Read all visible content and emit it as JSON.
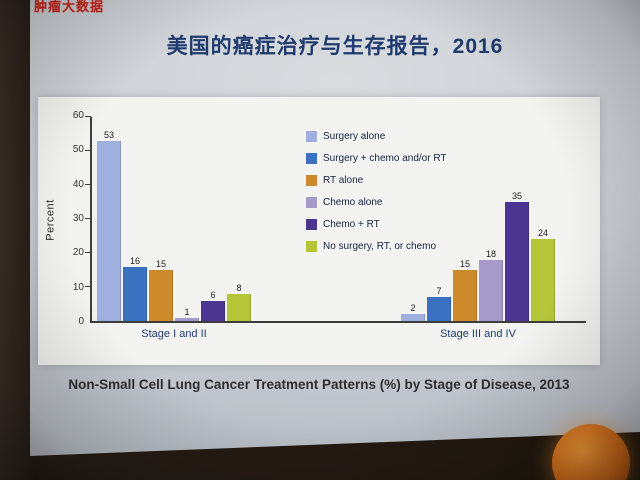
{
  "slide": {
    "watermark": "肿瘤大数据",
    "title": "美国的癌症治疗与生存报告，2016",
    "caption": "Non-Small Cell Lung Cancer Treatment Patterns (%) by Stage of Disease, 2013"
  },
  "chart_data": {
    "type": "bar",
    "title": "Non-Small Cell Lung Cancer Treatment Patterns (%) by Stage of Disease, 2013",
    "xlabel": "",
    "ylabel": "Percent",
    "ylim": [
      0,
      60
    ],
    "yticks": [
      0,
      10,
      20,
      30,
      40,
      50,
      60
    ],
    "grid": false,
    "legend_position": "inside upper center-right",
    "categories": [
      "Stage I and II",
      "Stage III and IV"
    ],
    "series": [
      {
        "name": "Surgery alone",
        "color": "#9fafde",
        "values": [
          53,
          2
        ]
      },
      {
        "name": "Surgery + chemo and/or RT",
        "color": "#3a71c1",
        "values": [
          16,
          7
        ]
      },
      {
        "name": "RT alone",
        "color": "#cd8a2b",
        "values": [
          15,
          15
        ]
      },
      {
        "name": "Chemo alone",
        "color": "#a49bcb",
        "values": [
          1,
          18
        ]
      },
      {
        "name": "Chemo + RT",
        "color": "#4a3590",
        "values": [
          6,
          35
        ]
      },
      {
        "name": "No surgery, RT, or chemo",
        "color": "#b4c638",
        "values": [
          8,
          24
        ]
      }
    ]
  }
}
